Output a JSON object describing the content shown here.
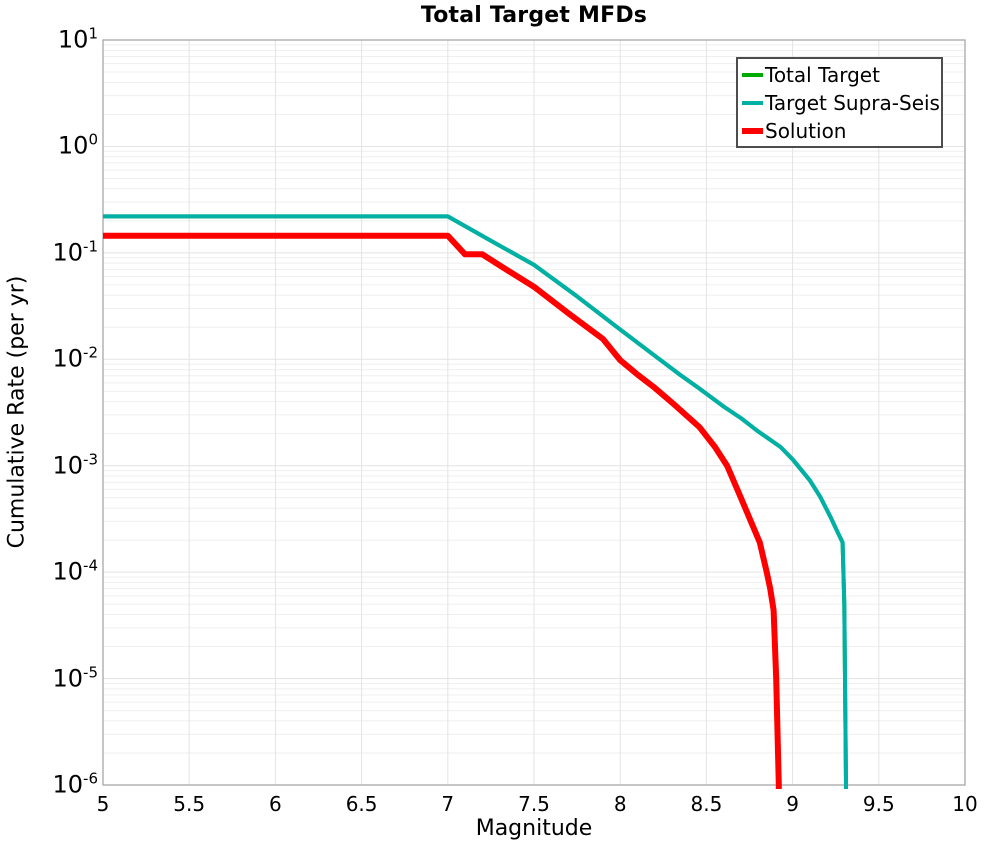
{
  "chart_data": {
    "type": "line",
    "title": "Total Target MFDs",
    "xlabel": "Magnitude",
    "ylabel": "Cumulative Rate (per yr)",
    "xlim": [
      5,
      10
    ],
    "yscale": "log",
    "ylim": [
      1e-06,
      10
    ],
    "xticks": [
      "5",
      "5.5",
      "6",
      "6.5",
      "7",
      "7.5",
      "8",
      "8.5",
      "9",
      "9.5",
      "10"
    ],
    "ytick_exponents": [
      1,
      0,
      -1,
      -2,
      -3,
      -4,
      -5,
      -6
    ],
    "grid": {
      "vertical_major": true,
      "horizontal_major": true,
      "horizontal_log_minor": true
    },
    "legend_position": "top-right",
    "colors": {
      "total_target": "#00aa00",
      "target_supra_seis": "#00b0a6",
      "solution": "#ff0000",
      "grid_major": "#e3e3e3",
      "grid_minor": "#efefef",
      "plot_border": "#a8a8a8",
      "legend_border": "#4d4d4d"
    },
    "series": [
      {
        "name": "Total Target",
        "color": "#00aa00",
        "width": 4,
        "points": [
          [
            5.0,
            0.22
          ],
          [
            7.0,
            0.22
          ],
          [
            7.25,
            0.13
          ],
          [
            7.5,
            0.077
          ],
          [
            7.75,
            0.039
          ],
          [
            8.0,
            0.019
          ],
          [
            8.2,
            0.0108
          ],
          [
            8.35,
            0.0071
          ],
          [
            8.46,
            0.0053
          ],
          [
            8.6,
            0.0036
          ],
          [
            8.7,
            0.0028
          ],
          [
            8.8,
            0.0021
          ],
          [
            8.93,
            0.0015
          ],
          [
            9.0,
            0.00115
          ],
          [
            9.1,
            0.00073
          ],
          [
            9.16,
            0.00051
          ],
          [
            9.22,
            0.00033
          ],
          [
            9.26,
            0.00024
          ],
          [
            9.29,
            0.00019
          ],
          [
            9.3,
            5e-05
          ],
          [
            9.31,
            1e-06
          ]
        ]
      },
      {
        "name": "Target Supra-Seis",
        "color": "#00b0a6",
        "width": 4,
        "points": [
          [
            5.0,
            0.22
          ],
          [
            7.0,
            0.22
          ],
          [
            7.25,
            0.13
          ],
          [
            7.5,
            0.077
          ],
          [
            7.75,
            0.039
          ],
          [
            8.0,
            0.019
          ],
          [
            8.2,
            0.0108
          ],
          [
            8.35,
            0.0071
          ],
          [
            8.46,
            0.0053
          ],
          [
            8.6,
            0.0036
          ],
          [
            8.7,
            0.0028
          ],
          [
            8.8,
            0.0021
          ],
          [
            8.93,
            0.0015
          ],
          [
            9.0,
            0.00115
          ],
          [
            9.1,
            0.00073
          ],
          [
            9.16,
            0.00051
          ],
          [
            9.22,
            0.00033
          ],
          [
            9.26,
            0.00024
          ],
          [
            9.29,
            0.00019
          ],
          [
            9.3,
            5e-05
          ],
          [
            9.31,
            1e-06
          ]
        ]
      },
      {
        "name": "Solution",
        "color": "#ff0000",
        "width": 6,
        "points": [
          [
            5.0,
            0.145
          ],
          [
            7.0,
            0.145
          ],
          [
            7.1,
            0.097
          ],
          [
            7.2,
            0.097
          ],
          [
            7.35,
            0.068
          ],
          [
            7.5,
            0.048
          ],
          [
            7.7,
            0.027
          ],
          [
            7.9,
            0.0155
          ],
          [
            8.0,
            0.0098
          ],
          [
            8.1,
            0.0072
          ],
          [
            8.2,
            0.0054
          ],
          [
            8.31,
            0.0038
          ],
          [
            8.46,
            0.0023
          ],
          [
            8.55,
            0.0015
          ],
          [
            8.62,
            0.001
          ],
          [
            8.7,
            0.0005
          ],
          [
            8.77,
            0.00027
          ],
          [
            8.81,
            0.00019
          ],
          [
            8.85,
            0.0001
          ],
          [
            8.87,
            7e-05
          ],
          [
            8.89,
            4.4e-05
          ],
          [
            8.905,
            1e-05
          ],
          [
            8.92,
            1e-06
          ]
        ]
      }
    ]
  }
}
